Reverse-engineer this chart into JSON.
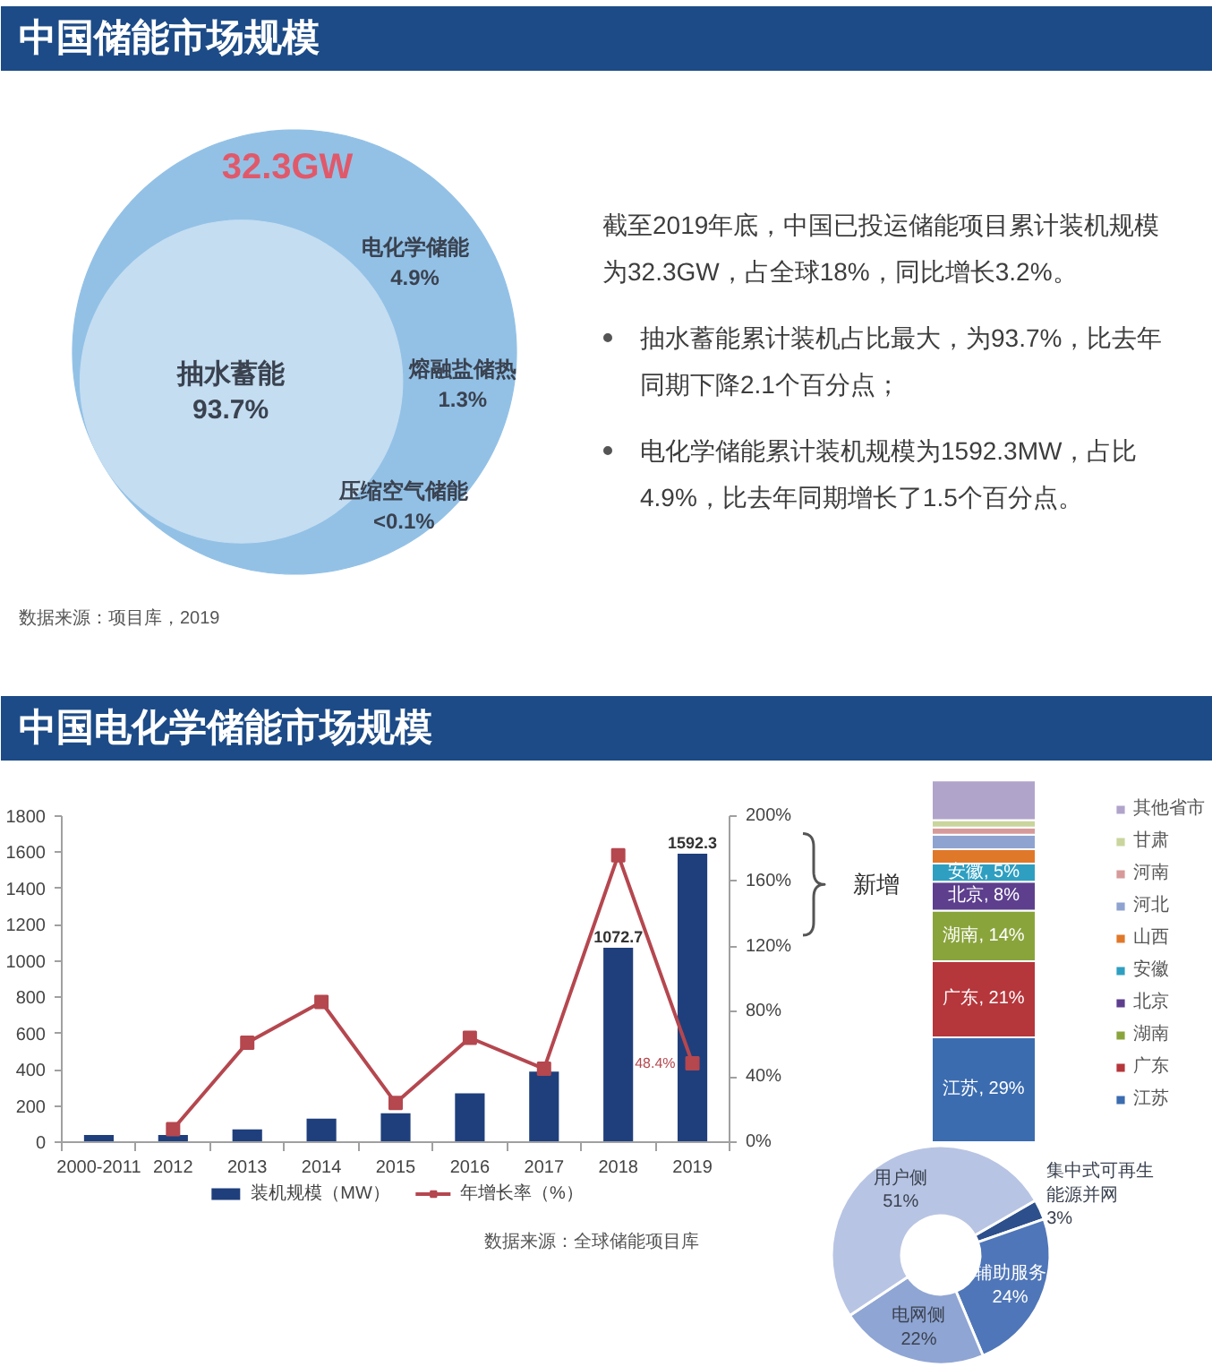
{
  "chart_data": [
    {
      "type": "other",
      "title": "中国储能市场规模",
      "categories": [
        "电化学储能",
        "熔融盐储热",
        "压缩空气储能",
        "抽水蓄能"
      ],
      "values": [
        4.9,
        1.3,
        null,
        93.7
      ],
      "value_labels": [
        "4.9%",
        "1.3%",
        "<0.1%",
        "93.7%"
      ],
      "colors": [
        "#93c1e6",
        "#93c1e6",
        "#93c1e6",
        "#c4ddf1"
      ],
      "annotations": [
        "32.3GW",
        "数据来源：项目库，2019"
      ]
    },
    {
      "type": "other",
      "annotations": [
        "截至2019年底，中国已投运储能项目累计装机规模为32.3GW，占全球18%，同比增长3.2%。",
        "抽水蓄能累计装机占比最大，为93.7%，比去年同期下降2.1个百分点；",
        "电化学储能累计装机规模为1592.3MW，占比4.9%，比去年同期增长了1.5个百分点。"
      ]
    },
    {
      "type": "bar",
      "title": "中国电化学储能市场规模",
      "categories": [
        "2000-2011",
        "2012",
        "2013",
        "2014",
        "2015",
        "2016",
        "2017",
        "2018",
        "2019"
      ],
      "series": [
        {
          "name": "装机规模（MW）",
          "color": "#1f3f7c",
          "values": [
            40,
            40,
            70,
            130,
            160,
            270,
            390,
            1072.7,
            1592.3
          ],
          "value_labels": [
            null,
            null,
            null,
            null,
            null,
            null,
            null,
            "1072.7",
            "1592.3"
          ]
        },
        {
          "name": "年增长率（%）",
          "type": "line",
          "axis": "y2",
          "marker": "square",
          "color": "#b5474f",
          "values": [
            null,
            8,
            61,
            86,
            24,
            64,
            45,
            176,
            48.4
          ],
          "value_labels": [
            null,
            null,
            null,
            null,
            null,
            null,
            null,
            null,
            "48.4%"
          ]
        }
      ],
      "ylim": [
        0,
        1800
      ],
      "yticks": [
        0,
        200,
        400,
        600,
        800,
        1000,
        1200,
        1400,
        1600,
        1800
      ],
      "y2lim": [
        0,
        200
      ],
      "y2ticks": [
        {
          "value": 0,
          "label": "0%"
        },
        {
          "value": 40,
          "label": "40%"
        },
        {
          "value": 80,
          "label": "80%"
        },
        {
          "value": 120,
          "label": "120%"
        },
        {
          "value": 160,
          "label": "160%"
        },
        {
          "value": 200,
          "label": "200%"
        }
      ],
      "legend": "bottom",
      "annotations": [
        "数据来源：全球储能项目库"
      ]
    },
    {
      "type": "bar",
      "stacked": true,
      "categories": [
        null
      ],
      "series": [
        {
          "name": "江苏",
          "color": "#3b6cb0",
          "values": [
            29
          ],
          "value_labels": [
            "江苏, 29%"
          ]
        },
        {
          "name": "广东",
          "color": "#b5363b",
          "values": [
            21
          ],
          "value_labels": [
            "广东, 21%"
          ]
        },
        {
          "name": "湖南",
          "color": "#8aa43c",
          "values": [
            14
          ],
          "value_labels": [
            "湖南, 14%"
          ]
        },
        {
          "name": "北京",
          "color": "#5d3f8e",
          "values": [
            8
          ],
          "value_labels": [
            "北京, 8%"
          ]
        },
        {
          "name": "安徽",
          "color": "#2f9fc1",
          "values": [
            5
          ],
          "value_labels": [
            "安徽, 5%"
          ]
        },
        {
          "name": "山西",
          "color": "#e0782a",
          "values": [
            4
          ]
        },
        {
          "name": "河北",
          "color": "#8fa3d0",
          "values": [
            4
          ]
        },
        {
          "name": "河南",
          "color": "#d79a9a",
          "values": [
            2
          ]
        },
        {
          "name": "甘肃",
          "color": "#c9d59d",
          "values": [
            2
          ]
        },
        {
          "name": "其他省市",
          "color": "#b1a4cb",
          "values": [
            11
          ]
        }
      ],
      "legend": "right",
      "annotations": [
        "新增"
      ]
    },
    {
      "type": "donut",
      "categories": [
        "集中式可再生能源并网",
        "辅助服务",
        "电网侧",
        "用户侧"
      ],
      "values": [
        3,
        24,
        22,
        51
      ],
      "value_labels": [
        "3%",
        "24%",
        "22%",
        "51%"
      ],
      "colors": [
        "#2d4f8c",
        "#4f76b8",
        "#8fa5d4",
        "#b8c4e3"
      ]
    }
  ]
}
